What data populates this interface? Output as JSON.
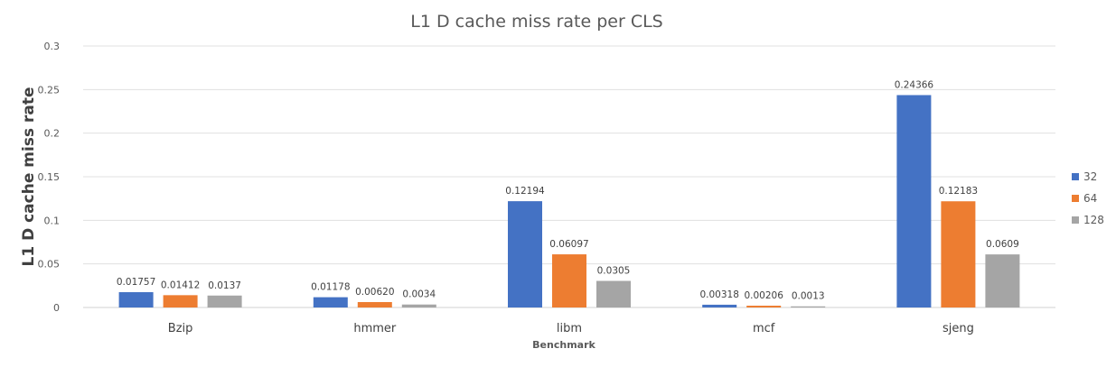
{
  "chart_data": {
    "type": "bar",
    "title": "L1 D cache miss rate per CLS",
    "xlabel": "Benchmark",
    "ylabel": "L1 D cache miss rate",
    "ylim": [
      0,
      0.3
    ],
    "yticks": [
      0,
      0.05,
      0.1,
      0.15,
      0.2,
      0.25,
      0.3
    ],
    "ytick_labels": [
      "0",
      "0.05",
      "0.1",
      "0.15",
      "0.2",
      "0.25",
      "0.3"
    ],
    "grid": true,
    "legend_position": "right",
    "categories": [
      "Bzip",
      "hmmer",
      "libm",
      "mcf",
      "sjeng"
    ],
    "series": [
      {
        "name": "32",
        "color": "#4472C4",
        "values": [
          0.01757,
          0.01178,
          0.12194,
          0.00318,
          0.24366
        ],
        "labels": [
          "0.01757",
          "0.01178",
          "0.12194",
          "0.00318",
          "0.24366"
        ]
      },
      {
        "name": "64",
        "color": "#ED7D31",
        "values": [
          0.01412,
          0.0062,
          0.06097,
          0.00206,
          0.12183
        ],
        "labels": [
          "0.01412",
          "0.00620",
          "0.06097",
          "0.00206",
          "0.12183"
        ]
      },
      {
        "name": "128",
        "color": "#A5A5A5",
        "values": [
          0.0137,
          0.0034,
          0.0305,
          0.0013,
          0.0609
        ],
        "labels": [
          "0.0137",
          "0.0034",
          "0.0305",
          "0.0013",
          "0.0609"
        ]
      }
    ]
  }
}
